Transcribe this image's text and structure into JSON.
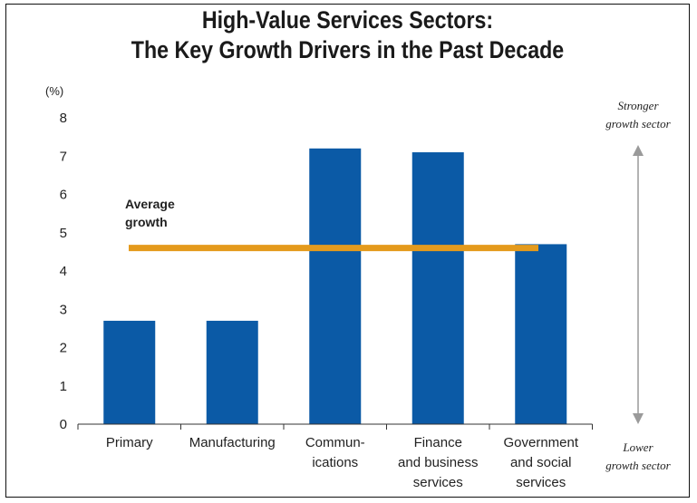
{
  "title_line1": "High-Value Services Sectors:",
  "title_line2": "The Key Growth Drivers in the Past Decade",
  "colors": {
    "bar": "#0b5aa6",
    "average_line": "#e49a1c",
    "arrow": "#9a9a9a"
  },
  "chart_data": {
    "type": "bar",
    "title": "High-Value Services Sectors: The Key Growth Drivers in the Past Decade",
    "ylabel": "(%)",
    "ylim": [
      0,
      8
    ],
    "yticks": [
      "0",
      "1",
      "2",
      "3",
      "4",
      "5",
      "6",
      "7",
      "8"
    ],
    "categories": [
      [
        "Primary"
      ],
      [
        "Manufacturing"
      ],
      [
        "Commun-",
        "ications"
      ],
      [
        "Finance",
        "and business",
        "services"
      ],
      [
        "Government",
        "and social",
        "services"
      ]
    ],
    "values": [
      2.7,
      2.7,
      7.2,
      7.1,
      4.7
    ],
    "average": {
      "label": [
        "Average",
        "growth"
      ],
      "value": 4.6
    },
    "annotations": {
      "top": [
        "Stronger",
        "growth sector"
      ],
      "bottom": [
        "Lower",
        "growth sector"
      ]
    }
  }
}
